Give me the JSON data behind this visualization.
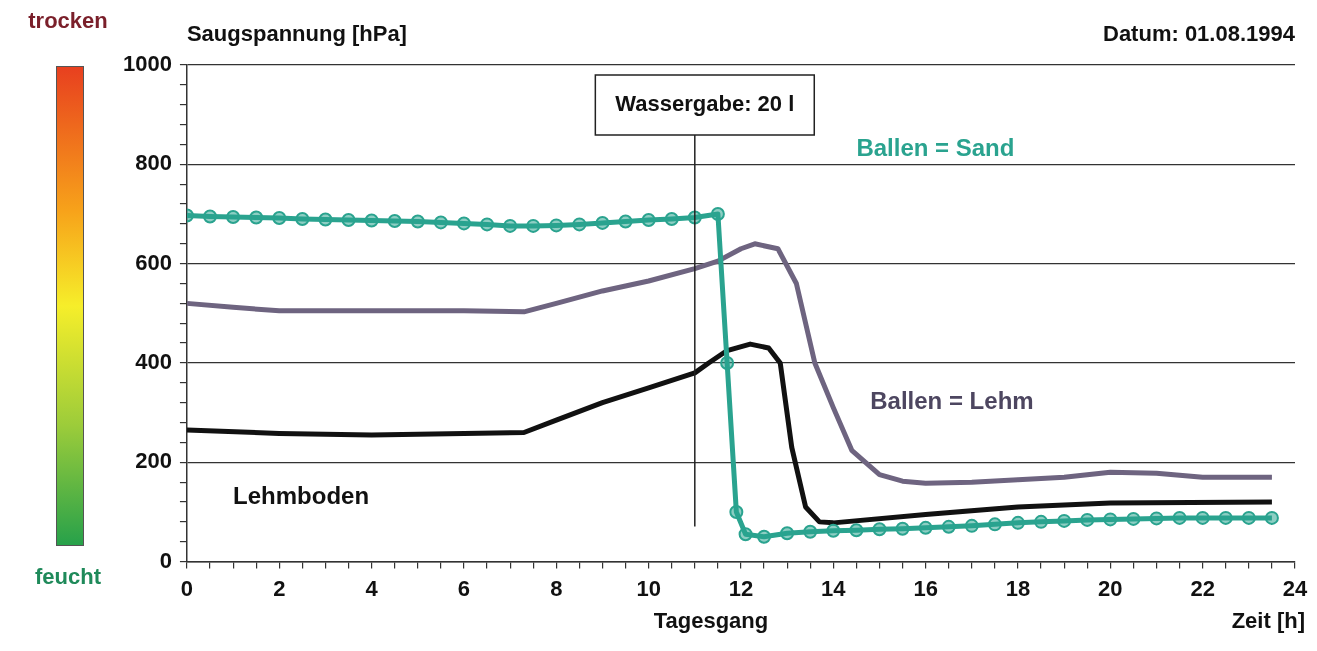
{
  "chart_data": {
    "type": "line",
    "subtitle": "Datum: 01.08.1994",
    "ylabel": "Saugspannung [hPa]",
    "xlabel": "Zeit [h]",
    "annotations": [
      "Tagesgang",
      "trocken",
      "feucht",
      "Wassergabe: 20 l"
    ],
    "xlim": [
      0,
      24
    ],
    "ylim": [
      0,
      1000
    ],
    "xticks": [
      0,
      {
        "value": 0.5,
        "label": null
      },
      {
        "value": 1,
        "label": null
      },
      {
        "value": 1.5,
        "label": null
      },
      2,
      {
        "value": 2.5,
        "label": null
      },
      {
        "value": 3,
        "label": null
      },
      {
        "value": 3.5,
        "label": null
      },
      4,
      {
        "value": 4.5,
        "label": null
      },
      {
        "value": 5,
        "label": null
      },
      {
        "value": 5.5,
        "label": null
      },
      6,
      {
        "value": 6.5,
        "label": null
      },
      {
        "value": 7,
        "label": null
      },
      {
        "value": 7.5,
        "label": null
      },
      8,
      {
        "value": 8.5,
        "label": null
      },
      {
        "value": 9,
        "label": null
      },
      {
        "value": 9.5,
        "label": null
      },
      10,
      {
        "value": 10.5,
        "label": null
      },
      {
        "value": 11,
        "label": null
      },
      {
        "value": 11.5,
        "label": null
      },
      12,
      {
        "value": 12.5,
        "label": null
      },
      {
        "value": 13,
        "label": null
      },
      {
        "value": 13.5,
        "label": null
      },
      14,
      {
        "value": 14.5,
        "label": null
      },
      {
        "value": 15,
        "label": null
      },
      {
        "value": 15.5,
        "label": null
      },
      16,
      {
        "value": 16.5,
        "label": null
      },
      {
        "value": 17,
        "label": null
      },
      {
        "value": 17.5,
        "label": null
      },
      18,
      {
        "value": 18.5,
        "label": null
      },
      {
        "value": 19,
        "label": null
      },
      {
        "value": 19.5,
        "label": null
      },
      20,
      {
        "value": 20.5,
        "label": null
      },
      {
        "value": 21,
        "label": null
      },
      {
        "value": 21.5,
        "label": null
      },
      22,
      {
        "value": 22.5,
        "label": null
      },
      {
        "value": 23,
        "label": null
      },
      {
        "value": 23.5,
        "label": null
      },
      24
    ],
    "yticks": [
      0,
      {
        "value": 40,
        "label": null
      },
      {
        "value": 80,
        "label": null
      },
      {
        "value": 120,
        "label": null
      },
      {
        "value": 160,
        "label": null
      },
      200,
      {
        "value": 240,
        "label": null
      },
      {
        "value": 280,
        "label": null
      },
      {
        "value": 320,
        "label": null
      },
      {
        "value": 360,
        "label": null
      },
      400,
      {
        "value": 440,
        "label": null
      },
      {
        "value": 480,
        "label": null
      },
      {
        "value": 520,
        "label": null
      },
      {
        "value": 560,
        "label": null
      },
      600,
      {
        "value": 640,
        "label": null
      },
      {
        "value": 680,
        "label": null
      },
      {
        "value": 720,
        "label": null
      },
      {
        "value": 760,
        "label": null
      },
      800,
      {
        "value": 840,
        "label": null
      },
      {
        "value": 880,
        "label": null
      },
      {
        "value": 920,
        "label": null
      },
      {
        "value": 960,
        "label": null
      },
      1000
    ],
    "grid": "y",
    "legend": false,
    "line_style": "solid",
    "ref_lines": [
      {
        "axis": "x",
        "value": 11,
        "color": "#222222"
      }
    ],
    "series": [
      {
        "name": "Ballen = Sand",
        "color": "#2aa38f",
        "marker": "circle",
        "x": [
          0,
          0.5,
          1,
          1.5,
          2,
          2.5,
          3,
          3.5,
          4,
          4.5,
          5,
          5.5,
          6,
          6.5,
          7,
          7.5,
          8,
          8.5,
          9,
          9.5,
          10,
          10.5,
          11,
          11.5,
          11.7,
          11.9,
          12.1,
          12.5,
          13,
          13.5,
          14,
          14.5,
          15,
          15.5,
          16,
          16.5,
          17,
          17.5,
          18,
          18.5,
          19,
          19.5,
          20,
          20.5,
          21,
          21.5,
          22,
          22.5,
          23,
          23.5
        ],
        "values": [
          697,
          695,
          694,
          693,
          692,
          690,
          689,
          688,
          687,
          686,
          685,
          683,
          681,
          679,
          676,
          676,
          677,
          679,
          682,
          685,
          688,
          690,
          693,
          700,
          400,
          100,
          55,
          50,
          57,
          60,
          62,
          63,
          65,
          66,
          68,
          70,
          72,
          75,
          78,
          80,
          82,
          84,
          85,
          86,
          87,
          88,
          88,
          88,
          88,
          88
        ]
      },
      {
        "name": "Ballen = Lehm",
        "color": "#6e6480",
        "marker": "none",
        "x": [
          0,
          1,
          2,
          4,
          6,
          7.3,
          8,
          9,
          10,
          11,
          11.5,
          12,
          12.3,
          12.8,
          13.2,
          13.6,
          14,
          14.4,
          15,
          15.5,
          16,
          17,
          18,
          19,
          20,
          21,
          22,
          23.5
        ],
        "values": [
          520,
          512,
          505,
          505,
          505,
          503,
          520,
          545,
          565,
          590,
          605,
          630,
          640,
          630,
          560,
          400,
          310,
          224,
          175,
          162,
          158,
          160,
          165,
          170,
          180,
          178,
          170,
          170
        ]
      },
      {
        "name": "Lehmboden",
        "color": "#111111",
        "marker": "none",
        "x": [
          0,
          2,
          4,
          6,
          7.3,
          8,
          9,
          10,
          11,
          11.3,
          11.7,
          12.2,
          12.6,
          12.85,
          13.1,
          13.4,
          13.7,
          14,
          16,
          18,
          20,
          23.5
        ],
        "values": [
          265,
          258,
          255,
          258,
          260,
          285,
          320,
          350,
          380,
          400,
          425,
          438,
          430,
          400,
          230,
          110,
          80,
          78,
          95,
          110,
          118,
          120
        ]
      }
    ]
  }
}
